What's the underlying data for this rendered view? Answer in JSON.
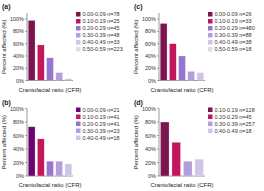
{
  "chart_data": [
    {
      "type": "bar",
      "title": "(a)",
      "xlabel": "Craniofacial ratio (CFR)",
      "ylabel": "Percent affected (%)",
      "categories": [
        null
      ],
      "series": [
        {
          "name": "0.00-0.09 n=78",
          "color": "#7b1550",
          "values": [
            98
          ]
        },
        {
          "name": "0.10-0.19 n=25",
          "color": "#c2185b",
          "values": [
            58
          ]
        },
        {
          "name": "0.20-0.29 n=45",
          "color": "#9575cd",
          "values": [
            37
          ]
        },
        {
          "name": "0.30-0.39 n=48",
          "color": "#b39ddb",
          "values": [
            13
          ]
        },
        {
          "name": "0.40-0.49 n=33",
          "color": "#d1c4e9",
          "values": [
            3
          ]
        },
        {
          "name": "0.50-0.59 n=223",
          "color": "#e8d5f5",
          "values": [
            null
          ]
        }
      ],
      "ylim": [
        0,
        110
      ],
      "yticks": [
        {
          "value": 0,
          "label": "0%"
        },
        {
          "value": 20,
          "label": "20%"
        },
        {
          "value": 40,
          "label": "40%"
        },
        {
          "value": 60,
          "label": "60%"
        },
        {
          "value": 80,
          "label": "80%"
        },
        {
          "value": 100,
          "label": "100%"
        }
      ],
      "grid": false,
      "legend": "right"
    },
    {
      "type": "bar",
      "title": "(c)",
      "xlabel": "Craniofacial ratio (CFR)",
      "ylabel": "Percent affected (%)",
      "categories": [
        null
      ],
      "series": [
        {
          "name": "0.00-0.09 n=26",
          "color": "#7b1550",
          "values": [
            93
          ]
        },
        {
          "name": "0.10-0.19 n=33",
          "color": "#c2185b",
          "values": [
            60
          ]
        },
        {
          "name": "0.20-0.29 n=480",
          "color": "#9575cd",
          "values": [
            40
          ]
        },
        {
          "name": "0.30-0.39 n=88",
          "color": "#b39ddb",
          "values": [
            15
          ]
        },
        {
          "name": "0.40-0.49 n=38",
          "color": "#d1c4e9",
          "values": [
            13
          ]
        },
        {
          "name": "0.50-0.59 n=18",
          "color": "#e8d5f5",
          "values": [
            null
          ]
        }
      ],
      "ylim": [
        0,
        110
      ],
      "yticks": [
        {
          "value": 0,
          "label": "0%"
        },
        {
          "value": 20,
          "label": "20%"
        },
        {
          "value": 40,
          "label": "40%"
        },
        {
          "value": 60,
          "label": "60%"
        },
        {
          "value": 80,
          "label": "80%"
        },
        {
          "value": 100,
          "label": "100%"
        }
      ],
      "grid": false,
      "legend": "right"
    },
    {
      "type": "bar",
      "title": "(b)",
      "xlabel": "Craniofacial ratio (CFR)",
      "ylabel": "Percent affected (%)",
      "categories": [
        null
      ],
      "series": [
        {
          "name": "0.00-0.09 n=21",
          "color": "#6a0572",
          "values": [
            73
          ]
        },
        {
          "name": "0.10-0.19 n=41",
          "color": "#c2185b",
          "values": [
            55
          ]
        },
        {
          "name": "0.20-0.29 n=41",
          "color": "#9575cd",
          "values": [
            22
          ]
        },
        {
          "name": "0.30-0.39 n=23",
          "color": "#b39ddb",
          "values": [
            22
          ]
        },
        {
          "name": "0.40-0.49 n=18",
          "color": "#d1c4e9",
          "values": [
            18
          ]
        }
      ],
      "ylim": [
        0,
        100
      ],
      "yticks": [
        {
          "value": 0,
          "label": "0%"
        },
        {
          "value": 20,
          "label": "20%"
        },
        {
          "value": 40,
          "label": "40%"
        },
        {
          "value": 60,
          "label": "60%"
        },
        {
          "value": 80,
          "label": "80%"
        },
        {
          "value": 100,
          "label": "100%"
        }
      ],
      "grid": false,
      "legend": "right"
    },
    {
      "type": "bar",
      "title": "(d)",
      "xlabel": "Craniofacial ratio (CFR)",
      "ylabel": "Percent affected (%)",
      "categories": [
        null
      ],
      "series": [
        {
          "name": "0.10-0.19 n=128",
          "color": "#7b1550",
          "values": [
            80
          ]
        },
        {
          "name": "0.20-0.29 n=45",
          "color": "#c2185b",
          "values": [
            50
          ]
        },
        {
          "name": "0.30-0.39 n=257",
          "color": "#b39ddb",
          "values": [
            22
          ]
        },
        {
          "name": "0.40-0.49 n=18",
          "color": "#d1c4e9",
          "values": [
            25
          ]
        }
      ],
      "ylim": [
        0,
        100
      ],
      "yticks": [
        {
          "value": 0,
          "label": "0%"
        },
        {
          "value": 20,
          "label": "20%"
        },
        {
          "value": 40,
          "label": "40%"
        },
        {
          "value": 60,
          "label": "60%"
        },
        {
          "value": 80,
          "label": "80%"
        },
        {
          "value": 100,
          "label": "100%"
        }
      ],
      "grid": false,
      "legend": "right"
    }
  ]
}
